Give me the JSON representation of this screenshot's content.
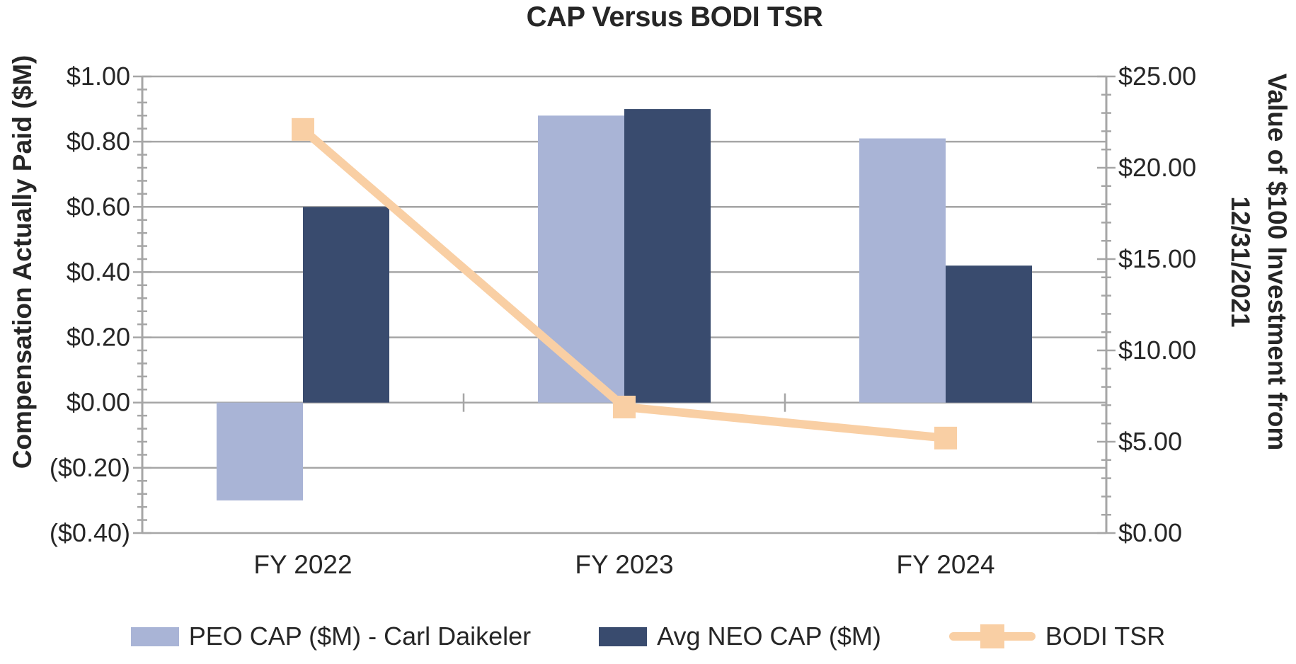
{
  "title": "CAP Versus BODI TSR",
  "chart_data": {
    "type": "combo-bar-line",
    "title": "CAP Versus BODI TSR",
    "categories": [
      "FY 2022",
      "FY 2023",
      "FY 2024"
    ],
    "series": [
      {
        "name": "PEO CAP ($M) - Carl Daikeler",
        "type": "bar",
        "axis": "left",
        "color": "#a9b4d6",
        "values": [
          -0.3,
          0.88,
          0.81
        ]
      },
      {
        "name": "Avg NEO CAP ($M)",
        "type": "bar",
        "axis": "left",
        "color": "#394b6e",
        "values": [
          0.6,
          0.9,
          0.42
        ]
      },
      {
        "name": "BODI TSR",
        "type": "line",
        "axis": "right",
        "color": "#f9cfa4",
        "marker": "square",
        "values": [
          22.1,
          6.9,
          5.2
        ]
      }
    ],
    "left_axis": {
      "label": "Compensation Actually Paid ($M)",
      "min": -0.4,
      "max": 1.0,
      "step": 0.2,
      "tick_labels": [
        "$1.00",
        "$0.80",
        "$0.60",
        "$0.40",
        "$0.20",
        "$0.00",
        "($0.20)",
        "($0.40)"
      ]
    },
    "right_axis": {
      "label_line1": "Value of $100 Investment from",
      "label_line2": "12/31/2021",
      "min": 0,
      "max": 25,
      "step": 5,
      "tick_labels": [
        "$25.00",
        "$20.00",
        "$15.00",
        "$10.00",
        "$5.00",
        "$0.00"
      ]
    },
    "grid": true,
    "legend_position": "bottom",
    "palette": {
      "grid": "#a6a6a6",
      "axis": "#a6a6a6",
      "text": "#262626"
    }
  }
}
